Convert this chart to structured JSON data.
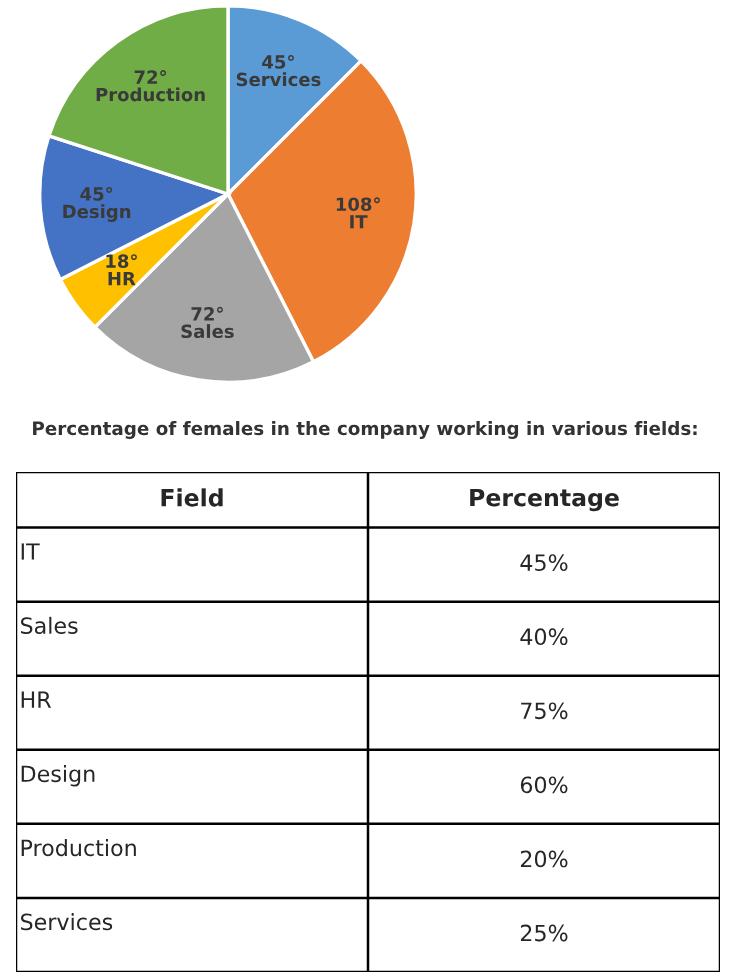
{
  "chart_data": [
    {
      "type": "pie",
      "categories": [
        "Services",
        "IT",
        "Sales",
        "HR",
        "Design",
        "Production"
      ],
      "values": [
        45,
        108,
        72,
        18,
        45,
        72
      ],
      "value_labels": [
        "45°",
        "108°",
        "72°",
        "18°",
        "45°",
        "72°"
      ],
      "colors": [
        "#5b9bd5",
        "#ed7d31",
        "#a5a5a5",
        "#ffc000",
        "#4472c4",
        "#70ad47"
      ]
    },
    {
      "type": "other",
      "title": "Percentage of females in the company working in various fields:",
      "annotations": [
        "Field",
        "Percentage"
      ],
      "categories": [
        "IT",
        "Sales",
        "HR",
        "Design",
        "Production",
        "Services"
      ],
      "value_labels": [
        "45%",
        "40%",
        "75%",
        "60%",
        "20%",
        "25%"
      ]
    }
  ]
}
